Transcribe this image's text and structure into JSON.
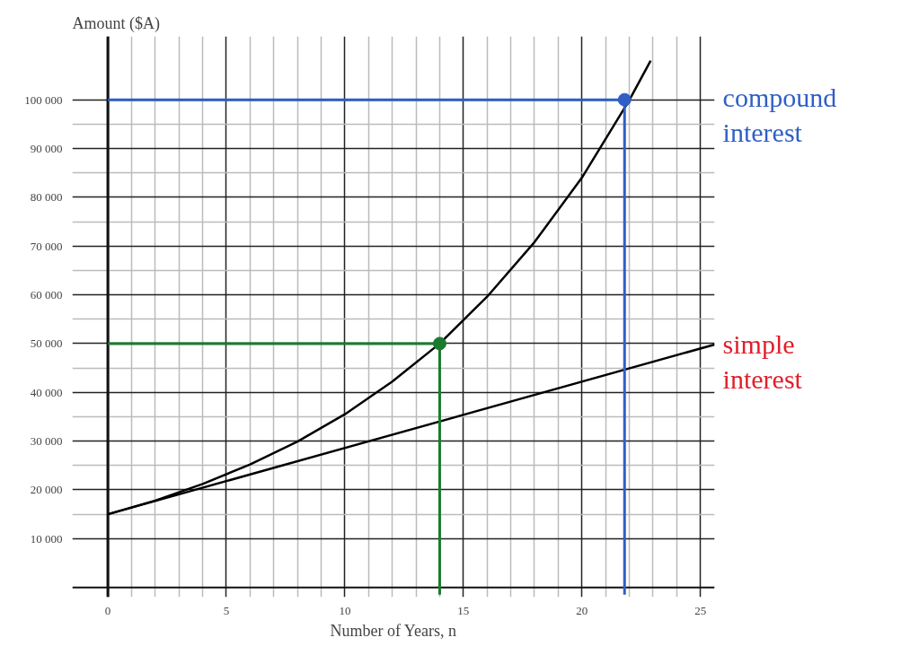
{
  "chart_data": {
    "type": "line",
    "xlabel": "Number of Years, n",
    "ylabel": "Amount ($A)",
    "xlim": [
      -1.5,
      25.6
    ],
    "ylim": [
      -2000,
      113000
    ],
    "xticks": [
      0,
      5,
      10,
      15,
      20,
      25
    ],
    "yticks": [
      {
        "value": 10000,
        "label": "10 000"
      },
      {
        "value": 20000,
        "label": "20 000"
      },
      {
        "value": 30000,
        "label": "30 000"
      },
      {
        "value": 40000,
        "label": "40 000"
      },
      {
        "value": 50000,
        "label": "50 000"
      },
      {
        "value": 60000,
        "label": "60 000"
      },
      {
        "value": 70000,
        "label": "70 000"
      },
      {
        "value": 80000,
        "label": "80 000"
      },
      {
        "value": 90000,
        "label": "90 000"
      },
      {
        "value": 100000,
        "label": "100 000"
      }
    ],
    "grid": true,
    "series": [
      {
        "color": "#000000",
        "x": [
          0,
          2,
          4,
          6,
          8,
          10,
          12,
          14,
          16,
          18,
          20,
          22,
          22.9
        ],
        "values": [
          15000,
          17800,
          21200,
          25200,
          29900,
          35500,
          42200,
          50000,
          59600,
          70800,
          84000,
          99900,
          108000
        ]
      },
      {
        "color": "#000000",
        "x": [
          0,
          25.6
        ],
        "values": [
          15000,
          49800
        ]
      },
      {
        "color": "#2f5fc4",
        "x": [
          0,
          21.8,
          21.8
        ],
        "values": [
          100000,
          100000,
          -1500
        ]
      },
      {
        "color": "#1a7a2e",
        "x": [
          0,
          14,
          14
        ],
        "values": [
          50000,
          50000,
          -1500
        ]
      },
      {
        "type": "scatter",
        "marker": "circle",
        "color": "#2f5fc4",
        "x": [
          21.8
        ],
        "values": [
          100000
        ]
      },
      {
        "type": "scatter",
        "marker": "circle",
        "color": "#1a7a2e",
        "x": [
          14
        ],
        "values": [
          50000
        ]
      }
    ],
    "annotations": [
      "compound\ninterest",
      "simple\ninterest"
    ]
  }
}
